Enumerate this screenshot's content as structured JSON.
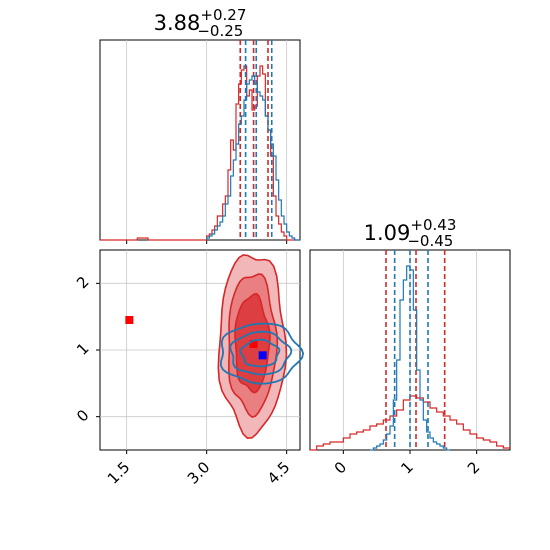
{
  "chart_data": [
    {
      "type": "histogram",
      "panel": "top-left marginal",
      "title": {
        "value": "3.88",
        "plus": "+0.27",
        "minus": "−0.25"
      },
      "xlim": [
        1.0,
        4.75
      ],
      "grid": true,
      "series": [
        {
          "color": "#d62728",
          "quantile_lines": [
            3.63,
            3.88,
            4.15
          ],
          "bins_x": [
            1.0,
            1.1,
            1.2,
            1.3,
            1.4,
            1.5,
            1.6,
            1.7,
            1.8,
            1.9,
            2.0,
            2.1,
            2.2,
            2.3,
            2.4,
            2.5,
            2.6,
            2.7,
            2.8,
            2.9,
            3.0,
            3.05,
            3.1,
            3.15,
            3.2,
            3.25,
            3.3,
            3.35,
            3.4,
            3.45,
            3.5,
            3.55,
            3.6,
            3.65,
            3.7,
            3.75,
            3.8,
            3.85,
            3.9,
            3.95,
            4.0,
            4.05,
            4.1,
            4.15,
            4.2,
            4.25,
            4.3,
            4.35,
            4.4,
            4.45,
            4.5,
            4.55,
            4.6,
            4.65,
            4.7,
            4.75
          ],
          "counts": [
            0.0,
            0.0,
            0.0,
            0.0,
            0.0,
            0.0,
            0.0,
            0.01,
            0.01,
            0.0,
            0.0,
            0.0,
            0.0,
            0.0,
            0.0,
            0.0,
            0.0,
            0.0,
            0.0,
            0.0,
            0.02,
            0.03,
            0.05,
            0.07,
            0.12,
            0.12,
            0.18,
            0.22,
            0.35,
            0.5,
            0.45,
            0.68,
            0.78,
            0.85,
            0.87,
            0.72,
            0.75,
            0.65,
            0.67,
            0.82,
            0.87,
            0.83,
            0.62,
            0.55,
            0.42,
            0.22,
            0.12,
            0.08,
            0.04,
            0.02,
            0.0,
            0.0,
            0.0,
            0.0,
            0.0
          ]
        },
        {
          "color": "#1f77b4",
          "quantile_lines": [
            3.73,
            3.93,
            4.22
          ],
          "bins_x": [
            3.0,
            3.05,
            3.1,
            3.15,
            3.2,
            3.25,
            3.3,
            3.35,
            3.4,
            3.45,
            3.5,
            3.55,
            3.6,
            3.65,
            3.7,
            3.75,
            3.8,
            3.85,
            3.9,
            3.95,
            4.0,
            4.05,
            4.1,
            4.15,
            4.2,
            4.25,
            4.3,
            4.35,
            4.4,
            4.45,
            4.5,
            4.55,
            4.6,
            4.65,
            4.7,
            4.75
          ],
          "counts": [
            0.01,
            0.02,
            0.03,
            0.05,
            0.07,
            0.09,
            0.12,
            0.18,
            0.22,
            0.32,
            0.4,
            0.48,
            0.58,
            0.62,
            0.7,
            0.78,
            0.8,
            0.82,
            0.78,
            0.74,
            0.72,
            0.7,
            0.62,
            0.55,
            0.48,
            0.42,
            0.3,
            0.2,
            0.12,
            0.08,
            0.04,
            0.02,
            0.01,
            0.0,
            0.0
          ]
        }
      ]
    },
    {
      "type": "contour",
      "panel": "bottom-left joint",
      "xlim": [
        1.0,
        4.75
      ],
      "ylim": [
        -0.5,
        2.5
      ],
      "xticks": [
        "1.5",
        "3.0",
        "4.5"
      ],
      "yticks": [
        "0",
        "1",
        "2"
      ],
      "grid": true,
      "series": [
        {
          "color": "#d62728",
          "center": [
            3.85,
            1.1
          ],
          "levels": [
            {
              "rx": 0.62,
              "ry": 1.35
            },
            {
              "rx": 0.45,
              "ry": 1.05
            },
            {
              "rx": 0.32,
              "ry": 0.72
            }
          ],
          "markers": [
            [
              1.55,
              1.45
            ],
            [
              3.88,
              1.09
            ]
          ]
        },
        {
          "color": "#1f77b4",
          "center": [
            4.0,
            0.95
          ],
          "levels": [
            {
              "rx": 0.75,
              "ry": 0.45
            },
            {
              "rx": 0.55,
              "ry": 0.32
            },
            {
              "rx": 0.35,
              "ry": 0.2
            }
          ],
          "markers": [
            [
              4.05,
              0.92
            ]
          ]
        }
      ]
    },
    {
      "type": "histogram",
      "panel": "bottom-right marginal",
      "title": {
        "value": "1.09",
        "plus": "+0.43",
        "minus": "−0.45"
      },
      "xlim": [
        -0.5,
        2.5
      ],
      "xticks": [
        "0",
        "1",
        "2"
      ],
      "grid": true,
      "series": [
        {
          "color": "#d62728",
          "quantile_lines": [
            0.64,
            1.09,
            1.52
          ],
          "bins_x": [
            -0.5,
            -0.4,
            -0.3,
            -0.2,
            -0.1,
            0.0,
            0.1,
            0.2,
            0.3,
            0.4,
            0.5,
            0.6,
            0.7,
            0.8,
            0.9,
            1.0,
            1.1,
            1.2,
            1.3,
            1.4,
            1.5,
            1.6,
            1.7,
            1.8,
            1.9,
            2.0,
            2.1,
            2.2,
            2.3,
            2.4,
            2.5
          ],
          "counts": [
            0.0,
            0.02,
            0.03,
            0.04,
            0.04,
            0.06,
            0.08,
            0.09,
            0.1,
            0.12,
            0.13,
            0.15,
            0.17,
            0.2,
            0.25,
            0.27,
            0.26,
            0.24,
            0.21,
            0.19,
            0.17,
            0.15,
            0.13,
            0.1,
            0.08,
            0.06,
            0.05,
            0.04,
            0.02,
            0.01
          ]
        },
        {
          "color": "#1f77b4",
          "quantile_lines": [
            0.77,
            1.0,
            1.27
          ],
          "bins_x": [
            0.4,
            0.45,
            0.5,
            0.55,
            0.6,
            0.65,
            0.7,
            0.75,
            0.8,
            0.85,
            0.9,
            0.95,
            1.0,
            1.05,
            1.1,
            1.15,
            1.2,
            1.25,
            1.3,
            1.35,
            1.4,
            1.45,
            1.5,
            1.55,
            1.6
          ],
          "counts": [
            0.0,
            0.01,
            0.02,
            0.03,
            0.05,
            0.08,
            0.12,
            0.25,
            0.45,
            0.75,
            0.85,
            0.92,
            0.9,
            0.7,
            0.4,
            0.25,
            0.15,
            0.09,
            0.06,
            0.04,
            0.03,
            0.02,
            0.01,
            0.0
          ]
        }
      ]
    }
  ]
}
